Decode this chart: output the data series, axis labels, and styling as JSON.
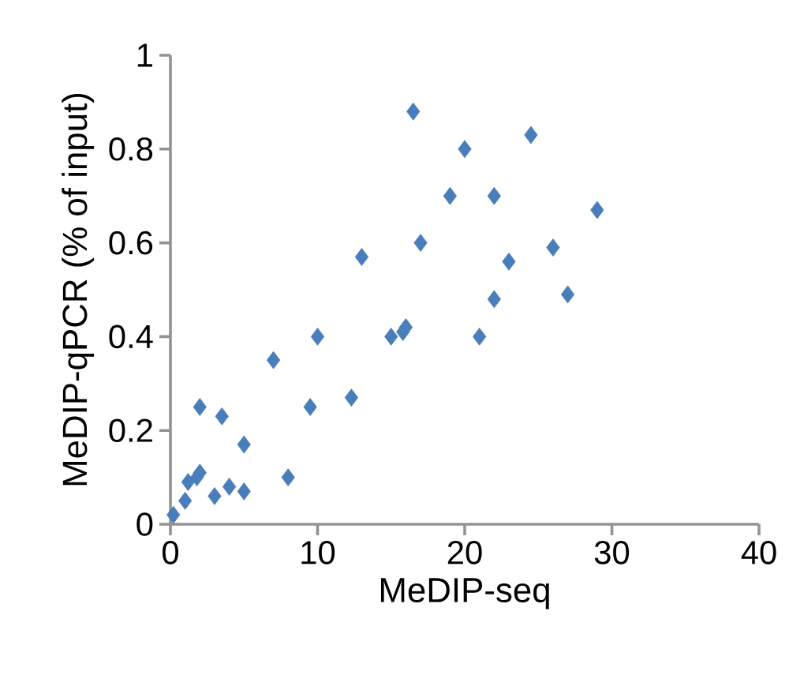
{
  "chart_data": {
    "type": "scatter",
    "xlabel": "MeDIP-seq",
    "ylabel": "MeDIP-qPCR (% of input)",
    "marker": "diamond",
    "grid": false,
    "xlim": [
      0,
      40
    ],
    "ylim": [
      0,
      1
    ],
    "xticks": [
      0,
      10,
      20,
      30,
      40
    ],
    "yticks": [
      0,
      0.2,
      0.4,
      0.6,
      0.8,
      1
    ],
    "x": [
      0.2,
      1,
      1.2,
      1.8,
      2,
      2,
      3,
      3.5,
      4,
      5,
      5,
      7,
      8,
      9.5,
      10,
      12.3,
      13,
      15,
      15.8,
      16,
      16.5,
      17,
      19,
      20,
      21,
      22,
      22,
      23,
      24.5,
      26,
      27,
      29
    ],
    "series": [
      {
        "color": "#4a7ebb",
        "values": [
          0.02,
          0.05,
          0.09,
          0.1,
          0.11,
          0.25,
          0.06,
          0.23,
          0.08,
          0.07,
          0.17,
          0.35,
          0.1,
          0.25,
          0.4,
          0.27,
          0.57,
          0.4,
          0.41,
          0.42,
          0.88,
          0.6,
          0.7,
          0.8,
          0.4,
          0.48,
          0.7,
          0.56,
          0.83,
          0.59,
          0.49,
          0.67
        ]
      }
    ]
  }
}
